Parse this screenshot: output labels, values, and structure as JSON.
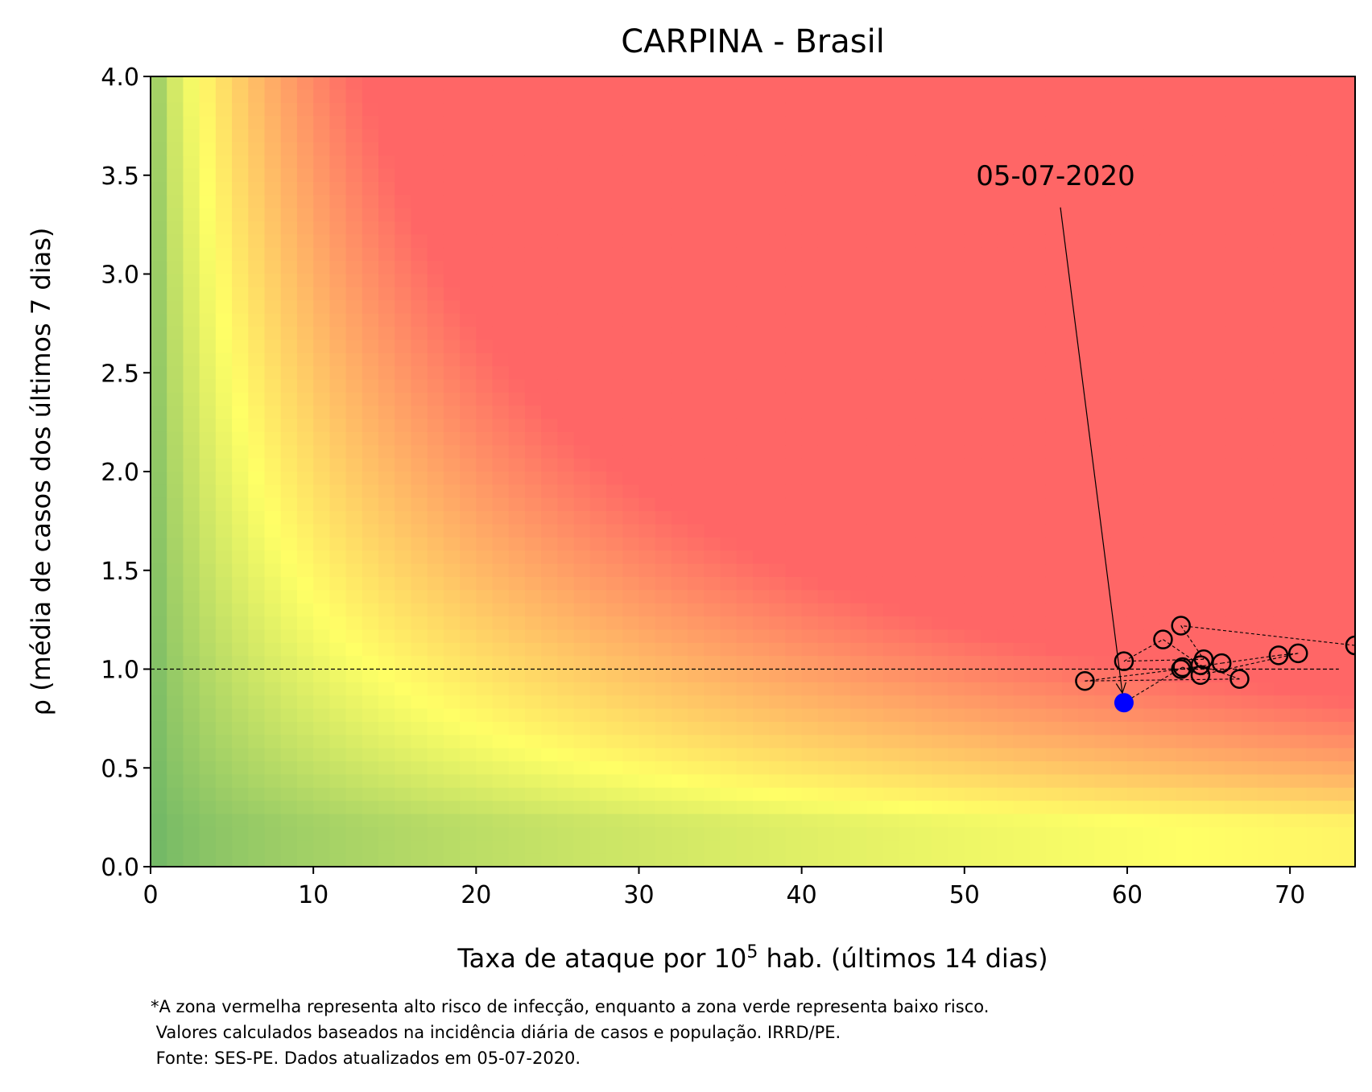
{
  "chart_data": {
    "type": "scatter",
    "title": "CARPINA - Brasil",
    "xlabel_parts": {
      "before": "Taxa de ataque por 10",
      "superscript": "5",
      "after": " hab. (últimos 14 dias)"
    },
    "ylabel": "ρ (média de casos dos últimos 7 dias)",
    "xlim": [
      0,
      74
    ],
    "ylim": [
      0,
      4
    ],
    "x_ticks": [
      0,
      10,
      20,
      30,
      40,
      50,
      60,
      70
    ],
    "x_tick_labels": [
      "0",
      "10",
      "20",
      "30",
      "40",
      "50",
      "60",
      "70"
    ],
    "y_ticks": [
      0,
      0.5,
      1,
      1.5,
      2,
      2.5,
      3,
      3.5,
      4
    ],
    "y_tick_labels": [
      "0.0",
      "0.5",
      "1.0",
      "1.5",
      "2.0",
      "2.5",
      "3.0",
      "3.5",
      "4.0"
    ],
    "reference_line_y": 1.0,
    "background": "risk heatmap: green (low) to yellow to red (high), risk rising with x·ρ",
    "colors": {
      "green": "#66b266",
      "yellow": "#ffff66",
      "red": "#ff6666",
      "current_point": "#0000ff"
    },
    "series": [
      {
        "x": [
          74.0,
          63.3,
          64.7,
          59.8,
          62.2,
          64.5,
          66.9,
          57.4,
          63.3,
          65.8,
          69.3,
          70.5,
          64.5,
          63.4,
          59.8
        ],
        "y": [
          1.12,
          1.22,
          1.05,
          1.04,
          1.15,
          1.02,
          0.95,
          0.94,
          1.0,
          1.03,
          1.07,
          1.08,
          0.97,
          1.01,
          0.83
        ]
      }
    ],
    "annotation": {
      "text": "05-07-2020",
      "point": [
        59.8,
        0.83
      ],
      "text_position": [
        55.6,
        3.5
      ]
    },
    "footnote": [
      "*A zona vermelha representa alto risco de infecção, enquanto a zona verde representa baixo risco.",
      " Valores calculados baseados na incidência diária de casos e população. IRRD/PE.",
      " Fonte: SES-PE. Dados atualizados em 05-07-2020."
    ]
  }
}
